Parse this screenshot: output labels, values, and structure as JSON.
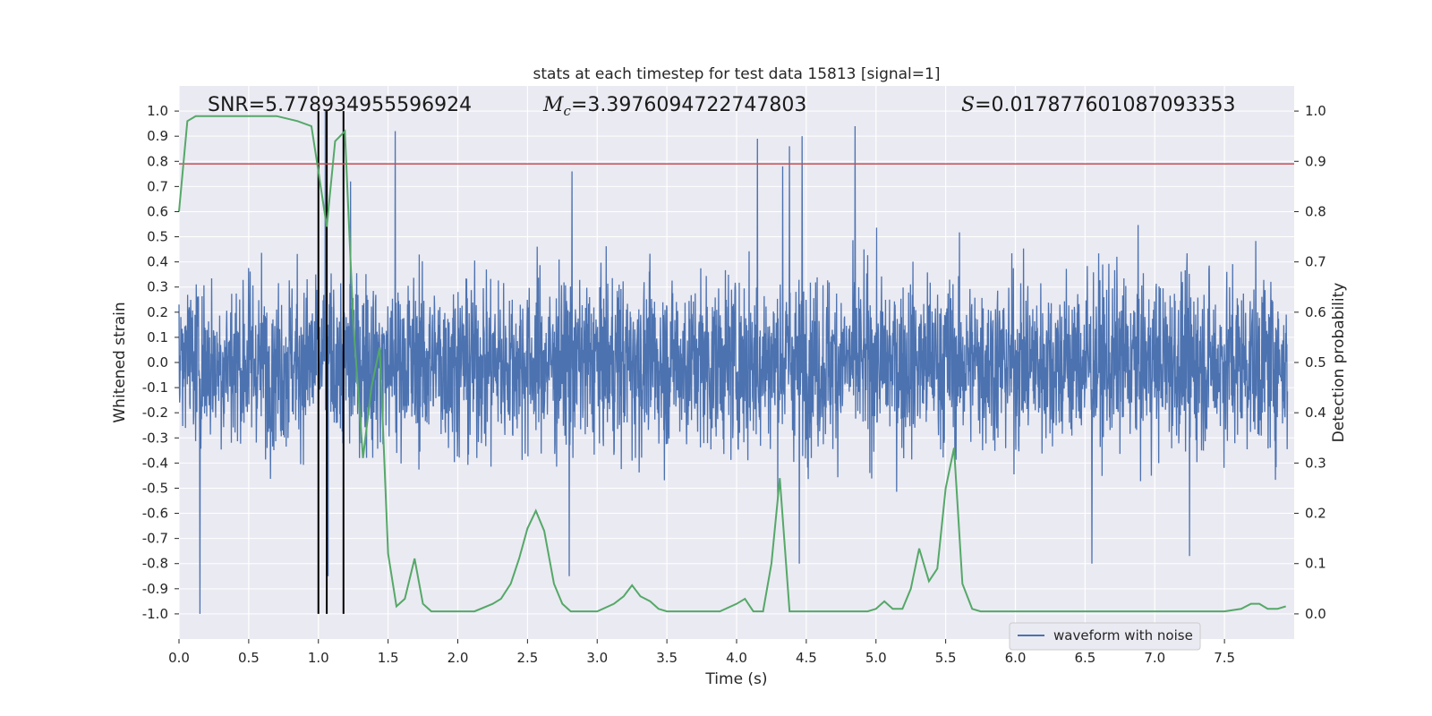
{
  "chart_data": {
    "type": "line",
    "title": "stats at each timestep for test data 15813 [signal=1]",
    "xlabel": "Time (s)",
    "ylabel": "Whitened strain",
    "ylabel_right": "Detection probability",
    "xlim": [
      0.0,
      8.0
    ],
    "ylim": [
      -1.1,
      1.1
    ],
    "ylim_right": [
      -0.05,
      1.05
    ],
    "x_ticks": [
      "0.0",
      "0.5",
      "1.0",
      "1.5",
      "2.0",
      "2.5",
      "3.0",
      "3.5",
      "4.0",
      "4.5",
      "5.0",
      "5.5",
      "6.0",
      "6.5",
      "7.0",
      "7.5"
    ],
    "y_ticks": [
      "1.0",
      "0.9",
      "0.8",
      "0.7",
      "0.6",
      "0.5",
      "0.4",
      "0.3",
      "0.2",
      "0.1",
      "0.0",
      "-0.1",
      "-0.2",
      "-0.3",
      "-0.4",
      "-0.5",
      "-0.6",
      "-0.7",
      "-0.8",
      "-0.9",
      "-1.0"
    ],
    "y_ticks_right": [
      "1.0",
      "0.9",
      "0.8",
      "0.7",
      "0.6",
      "0.5",
      "0.4",
      "0.3",
      "0.2",
      "0.1",
      "0.0"
    ],
    "grid": true,
    "legend_position": "lower-right",
    "annotations": {
      "snr_label": "SNR=5.778934955596924",
      "mc_symbol": "M",
      "mc_sub": "c",
      "mc_value": "=3.3976094722747803",
      "s_symbol": "S",
      "s_value": "=0.017877601087093353"
    },
    "series": [
      {
        "name": "waveform with noise",
        "axis": "left",
        "color": "#4c72b0",
        "style": "dense noisy strain, envelope approx ±0.4 with spikes",
        "spikes": [
          {
            "x": 0.15,
            "y": -1.0
          },
          {
            "x": 0.98,
            "y": 0.35
          },
          {
            "x": 1.05,
            "y": 1.0
          },
          {
            "x": 1.07,
            "y": -0.85
          },
          {
            "x": 1.18,
            "y": -0.68
          },
          {
            "x": 1.23,
            "y": 0.72
          },
          {
            "x": 1.55,
            "y": 0.92
          },
          {
            "x": 2.82,
            "y": 0.76
          },
          {
            "x": 4.15,
            "y": 0.89
          },
          {
            "x": 4.33,
            "y": 0.78
          },
          {
            "x": 4.38,
            "y": 0.86
          },
          {
            "x": 4.47,
            "y": 0.9
          },
          {
            "x": 4.85,
            "y": 0.94
          },
          {
            "x": 2.8,
            "y": -0.85
          },
          {
            "x": 4.45,
            "y": -0.8
          },
          {
            "x": 6.55,
            "y": -0.8
          },
          {
            "x": 7.25,
            "y": -0.77
          }
        ]
      },
      {
        "name": "detection probability",
        "axis": "right",
        "color": "#55a868",
        "x": [
          0.0,
          0.06,
          0.12,
          0.25,
          0.5,
          0.7,
          0.85,
          0.95,
          1.0,
          1.06,
          1.12,
          1.19,
          1.25,
          1.32,
          1.38,
          1.44,
          1.5,
          1.56,
          1.62,
          1.69,
          1.75,
          1.81,
          1.88,
          2.0,
          2.12,
          2.25,
          2.31,
          2.38,
          2.44,
          2.5,
          2.56,
          2.62,
          2.69,
          2.75,
          2.81,
          2.88,
          3.0,
          3.12,
          3.19,
          3.25,
          3.31,
          3.38,
          3.44,
          3.5,
          3.62,
          3.75,
          3.88,
          4.0,
          4.06,
          4.12,
          4.19,
          4.25,
          4.31,
          4.38,
          4.44,
          4.5,
          4.62,
          4.75,
          4.94,
          5.0,
          5.06,
          5.12,
          5.19,
          5.25,
          5.31,
          5.38,
          5.44,
          5.5,
          5.56,
          5.62,
          5.69,
          5.75,
          5.88,
          6.0,
          6.25,
          6.5,
          7.0,
          7.5,
          7.62,
          7.69,
          7.75,
          7.81,
          7.88,
          7.94
        ],
        "values": [
          0.8,
          0.98,
          0.99,
          0.99,
          0.99,
          0.99,
          0.98,
          0.97,
          0.88,
          0.77,
          0.94,
          0.96,
          0.58,
          0.31,
          0.45,
          0.53,
          0.12,
          0.015,
          0.03,
          0.11,
          0.02,
          0.005,
          0.005,
          0.005,
          0.005,
          0.02,
          0.03,
          0.06,
          0.11,
          0.17,
          0.205,
          0.165,
          0.06,
          0.02,
          0.005,
          0.005,
          0.005,
          0.02,
          0.035,
          0.057,
          0.035,
          0.025,
          0.01,
          0.005,
          0.005,
          0.005,
          0.005,
          0.02,
          0.03,
          0.005,
          0.005,
          0.1,
          0.27,
          0.005,
          0.005,
          0.005,
          0.005,
          0.005,
          0.005,
          0.01,
          0.025,
          0.01,
          0.01,
          0.05,
          0.13,
          0.065,
          0.09,
          0.25,
          0.33,
          0.06,
          0.01,
          0.005,
          0.005,
          0.005,
          0.005,
          0.005,
          0.005,
          0.005,
          0.01,
          0.02,
          0.02,
          0.01,
          0.01,
          0.015
        ]
      }
    ],
    "threshold_line": {
      "axis": "left",
      "y": 0.79,
      "color": "#c44e52"
    },
    "vertical_lines": [
      {
        "x": 1.0,
        "y0": -1.0,
        "y1": 1.0
      },
      {
        "x": 1.06,
        "y0": -1.0,
        "y1": 1.0
      },
      {
        "x": 1.18,
        "y0": -1.0,
        "y1": 1.0
      }
    ],
    "colors": {
      "plot_bg": "#eaeaf2",
      "grid": "#ffffff",
      "strain": "#4c72b0",
      "probability": "#55a868",
      "threshold": "#c44e52",
      "marker_lines": "#000000"
    }
  }
}
